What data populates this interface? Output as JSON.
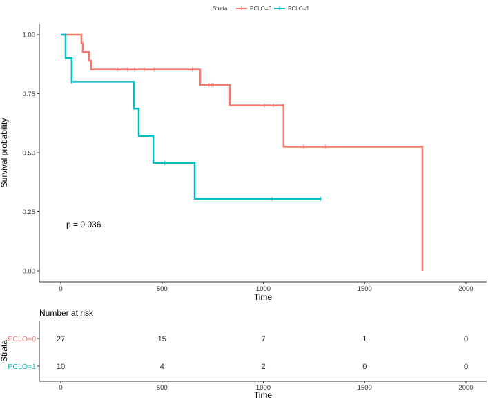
{
  "chart_data": {
    "type": "line",
    "subtype": "kaplan-meier step",
    "legend": {
      "title": "Strata",
      "placement": "top"
    },
    "xlabel": "Time",
    "ylabel": "Survival probability",
    "xlim": [
      0,
      2000
    ],
    "ylim": [
      0,
      1
    ],
    "xticks": [
      "0",
      "500",
      "1000",
      "1500",
      "2000"
    ],
    "yticks": [
      "0.00",
      "0.25",
      "0.50",
      "0.75",
      "1.00"
    ],
    "grid": false,
    "annotation": "p = 0.036",
    "series": [
      {
        "name": "PCLO=0",
        "color": "#F8766D",
        "steps": [
          [
            0,
            1.0
          ],
          [
            102,
            0.963
          ],
          [
            109,
            0.926
          ],
          [
            140,
            0.889
          ],
          [
            150,
            0.852
          ],
          [
            688,
            0.787
          ],
          [
            835,
            0.7
          ],
          [
            1100,
            0.525
          ],
          [
            1785,
            0.0
          ]
        ],
        "censored": [
          [
            280,
            0.852
          ],
          [
            330,
            0.852
          ],
          [
            365,
            0.852
          ],
          [
            412,
            0.852
          ],
          [
            460,
            0.852
          ],
          [
            650,
            0.852
          ],
          [
            732,
            0.787
          ],
          [
            746,
            0.787
          ],
          [
            753,
            0.787
          ],
          [
            1005,
            0.7
          ],
          [
            1049,
            0.7
          ],
          [
            1097,
            0.7
          ],
          [
            1199,
            0.525
          ],
          [
            1308,
            0.525
          ]
        ]
      },
      {
        "name": "PCLO=1",
        "color": "#00BFC4",
        "steps": [
          [
            0,
            1.0
          ],
          [
            24,
            0.9
          ],
          [
            54,
            0.8
          ],
          [
            361,
            0.686
          ],
          [
            385,
            0.571
          ],
          [
            457,
            0.457
          ],
          [
            661,
            0.305
          ],
          [
            1284,
            0.305
          ]
        ],
        "censored": [
          [
            54,
            0.8
          ],
          [
            514,
            0.457
          ],
          [
            1042,
            0.305
          ],
          [
            1284,
            0.305
          ]
        ]
      }
    ],
    "risk_table": {
      "title": "Number at risk",
      "ylabel": "Strata",
      "xlabel": "Time",
      "times": [
        0,
        500,
        1000,
        1500,
        2000
      ],
      "xticks": [
        "0",
        "500",
        "1000",
        "1500",
        "2000"
      ],
      "rows": [
        {
          "label": "PCLO=0",
          "color": "#F8766D",
          "values": [
            "27",
            "15",
            "7",
            "1",
            "0"
          ]
        },
        {
          "label": "PCLO=1",
          "color": "#00BFC4",
          "values": [
            "10",
            "4",
            "2",
            "0",
            "0"
          ]
        }
      ]
    }
  }
}
